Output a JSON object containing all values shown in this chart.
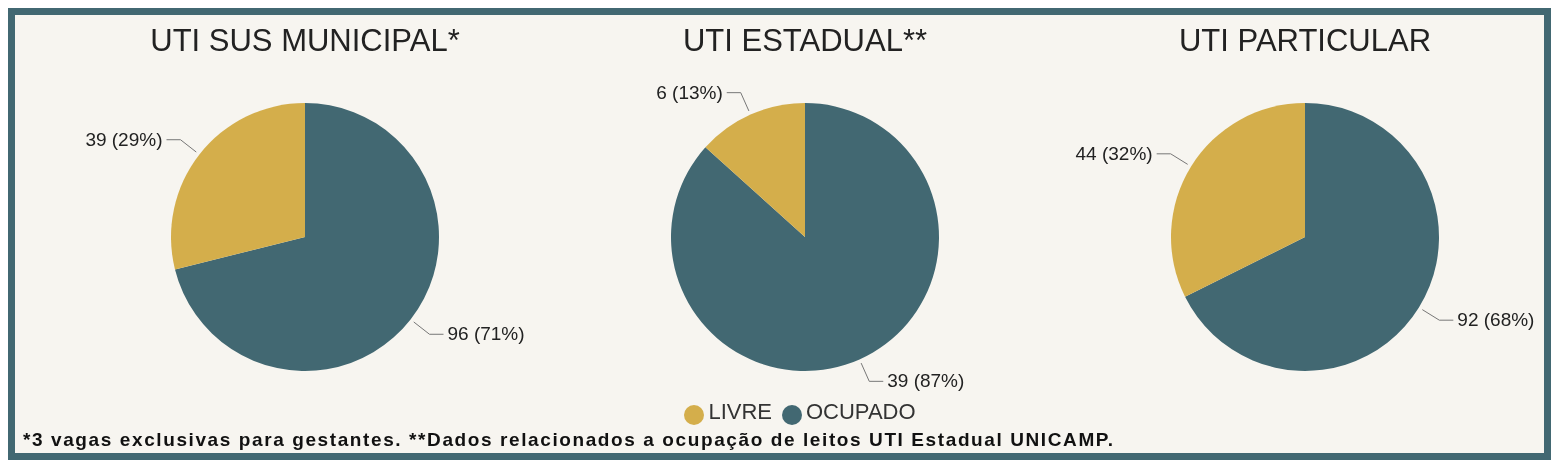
{
  "chart_data": [
    {
      "type": "pie",
      "title": "UTI SUS MUNICIPAL*",
      "categories": [
        null,
        null
      ],
      "values": [
        96,
        39
      ],
      "value_labels": [
        "96 (71%)",
        "39 (29%)"
      ],
      "colors": [
        "#426872",
        "#d4ae4b"
      ],
      "annotations": [
        "*3 vagas exclusivas para gestantes. **Dados relacionados a ocupação de leitos UTI Estadual UNICAMP."
      ]
    },
    {
      "type": "pie",
      "title": "UTI ESTADUAL**",
      "categories": [
        "OCUPADO",
        "LIVRE"
      ],
      "values": [
        39,
        6
      ],
      "value_labels": [
        "39 (87%)",
        "6 (13%)"
      ],
      "colors": [
        "#426872",
        "#d4ae4b"
      ],
      "legend": "bottom"
    },
    {
      "type": "pie",
      "title": "UTI PARTICULAR",
      "categories": [
        null,
        null
      ],
      "values": [
        92,
        44
      ],
      "value_labels": [
        "92 (68%)",
        "44 (32%)"
      ],
      "colors": [
        "#426872",
        "#d4ae4b"
      ]
    }
  ]
}
